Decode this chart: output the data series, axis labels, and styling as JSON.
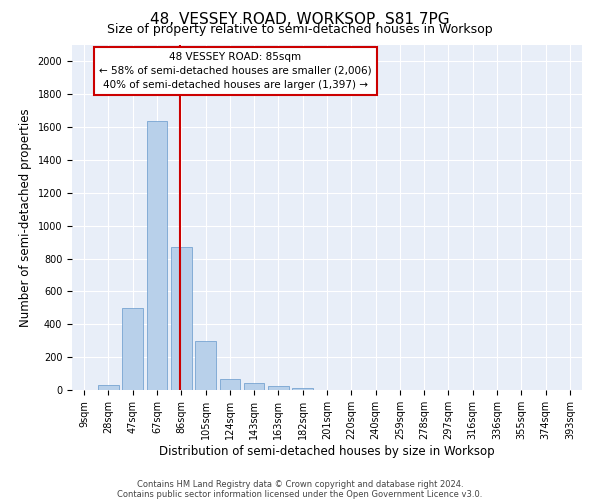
{
  "title": "48, VESSEY ROAD, WORKSOP, S81 7PG",
  "subtitle": "Size of property relative to semi-detached houses in Worksop",
  "xlabel": "Distribution of semi-detached houses by size in Worksop",
  "ylabel": "Number of semi-detached properties",
  "bin_labels": [
    "9sqm",
    "28sqm",
    "47sqm",
    "67sqm",
    "86sqm",
    "105sqm",
    "124sqm",
    "143sqm",
    "163sqm",
    "182sqm",
    "201sqm",
    "220sqm",
    "240sqm",
    "259sqm",
    "278sqm",
    "297sqm",
    "316sqm",
    "336sqm",
    "355sqm",
    "374sqm",
    "393sqm"
  ],
  "bar_values": [
    0,
    30,
    500,
    1640,
    870,
    300,
    65,
    40,
    25,
    15,
    0,
    0,
    0,
    0,
    0,
    0,
    0,
    0,
    0,
    0,
    0
  ],
  "bar_color": "#b8d0ea",
  "bar_edgecolor": "#6699cc",
  "annotation_text": "48 VESSEY ROAD: 85sqm\n← 58% of semi-detached houses are smaller (2,006)\n40% of semi-detached houses are larger (1,397) →",
  "annotation_box_color": "#ffffff",
  "annotation_box_edgecolor": "#cc0000",
  "vline_color": "#cc0000",
  "vline_x_index": 3.93,
  "ylim": [
    0,
    2100
  ],
  "yticks": [
    0,
    200,
    400,
    600,
    800,
    1000,
    1200,
    1400,
    1600,
    1800,
    2000
  ],
  "footnote1": "Contains HM Land Registry data © Crown copyright and database right 2024.",
  "footnote2": "Contains public sector information licensed under the Open Government Licence v3.0.",
  "background_color": "#e8eef8",
  "grid_color": "#ffffff",
  "title_fontsize": 11,
  "subtitle_fontsize": 9,
  "axis_label_fontsize": 8.5,
  "tick_fontsize": 7,
  "annotation_fontsize": 7.5,
  "footnote_fontsize": 6
}
